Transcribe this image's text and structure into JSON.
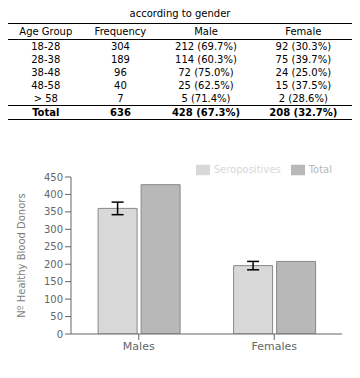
{
  "chart_data": [
    {
      "type": "table",
      "title": "according to gender",
      "headers": [
        "Age Group",
        "Frequency",
        "Male",
        "Female"
      ],
      "rows": [
        [
          "18-28",
          "304",
          "212 (69.7%)",
          "92 (30.3%)"
        ],
        [
          "28-38",
          "189",
          "114 (60.3%)",
          "75 (39.7%)"
        ],
        [
          "38-48",
          "96",
          "72 (75.0%)",
          "24 (25.0%)"
        ],
        [
          "48-58",
          "40",
          "25 (62.5%)",
          "15 (37.5%)"
        ],
        [
          "> 58",
          "7",
          "5 (71.4%)",
          "2 (28.6%)"
        ],
        [
          "Total",
          "636",
          "428 (67.3%)",
          "208 (32.7%)"
        ]
      ]
    },
    {
      "type": "bar",
      "categories": [
        "Males",
        "Females"
      ],
      "series": [
        {
          "name": "Seropositives",
          "color": "#d8d8d8",
          "values": [
            360,
            196
          ],
          "errors": [
            18,
            12
          ]
        },
        {
          "name": "Total",
          "color": "#b8b8b8",
          "values": [
            428,
            208
          ]
        }
      ],
      "ylabel": "Nº Healthy Blood Donors",
      "ylim": [
        0,
        450
      ],
      "yticks": [
        0,
        50,
        100,
        150,
        200,
        250,
        300,
        350,
        400,
        450
      ],
      "grid": false,
      "legend": "upper right"
    }
  ]
}
